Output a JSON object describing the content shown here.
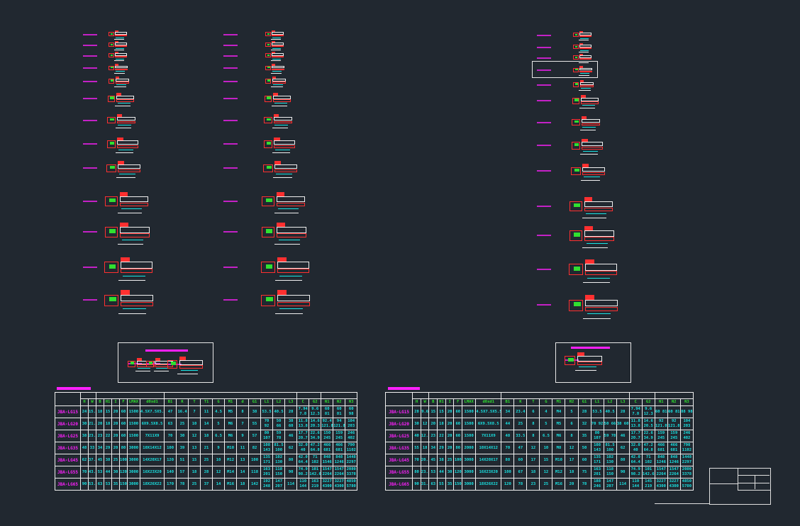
{
  "colors": {
    "background": "#212830",
    "line": "#f0f0f0",
    "value": "#19e5e5",
    "header": "#30e030",
    "label": "#ff20ff",
    "part_red": "#ff2020"
  },
  "left_table": {
    "groups": [
      2,
      6,
      11,
      2,
      3
    ],
    "headers": [
      "H",
      "W",
      "B",
      "H1",
      "I",
      "F",
      "LMAX",
      "d0xd1",
      "B1",
      "K",
      "T",
      "T1",
      "G",
      "M1",
      "d",
      "G1",
      "L1",
      "L2",
      "L3",
      "C",
      "G2",
      "N1",
      "N2",
      "N3"
    ],
    "rows": [
      [
        "JBA-LG15",
        "24",
        "15.5",
        "18",
        "15",
        "20",
        "60",
        "1500",
        "4.5X7.5X5.3",
        "47",
        "16.4",
        "7",
        "11",
        "4.5",
        "M5",
        "8",
        "38",
        "53.5",
        "40.5",
        "28",
        "7.94 7.8",
        "9.6 12.3",
        "60 81",
        "60 81",
        "60 98"
      ],
      [
        "JBA-LG20",
        "30",
        "21.5",
        "20",
        "18",
        "20",
        "60",
        "1500",
        "6X9.5X8.5",
        "63",
        "25",
        "10",
        "14",
        "5",
        "M6",
        "7",
        "55",
        "70 92",
        "50 66",
        "38 60",
        "11.8 13.8",
        "14.6 20.3",
        "92.4 121.8",
        "94 121.8",
        "104 203"
      ],
      [
        "JBA-LG25",
        "38",
        "23.5",
        "23",
        "22",
        "20",
        "60",
        "1500",
        "7X11X9",
        "70",
        "30",
        "12",
        "18",
        "6.5",
        "M6",
        "9",
        "57",
        "80 107",
        "59 78",
        "46",
        "17.7 20.7",
        "22.6 34.9",
        "150 245",
        "159 245",
        "246 402"
      ],
      [
        "JBA-LG35",
        "48",
        "33",
        "34",
        "29",
        "20",
        "80",
        "3000",
        "10X14X12",
        "100",
        "39",
        "13",
        "21",
        "9",
        "M10",
        "11",
        "82",
        "108 143",
        "81.5 100",
        "62",
        "32.0 40",
        "47.2 64.8",
        "466 681",
        "466 681",
        "790 1102"
      ],
      [
        "JBA-LG45",
        "62",
        "37.5",
        "45",
        "38",
        "25",
        "100",
        "3000",
        "14X20X17",
        "120",
        "51",
        "15",
        "25",
        "10",
        "M12",
        "13",
        "100",
        "135 171",
        "102 130",
        "80",
        "42.0 64.4",
        "71 102",
        "848 1546",
        "848 1246",
        "1448 2297"
      ],
      [
        "JBA-LG55",
        "70",
        "43.5",
        "53",
        "44",
        "30",
        "120",
        "3000",
        "16X23X20",
        "140",
        "57",
        "18",
        "28",
        "12",
        "M14",
        "14",
        "118",
        "163 201",
        "118 150",
        "90",
        "74.9 98.2",
        "101 142.6",
        "1547 2264",
        "1547 2264",
        "2080 3378"
      ],
      [
        "JBA-LG65",
        "90",
        "53.5",
        "63",
        "53",
        "35",
        "150",
        "3000",
        "18X26X22",
        "170",
        "78",
        "25",
        "37",
        "14",
        "M16",
        "18",
        "142",
        "192 248",
        "147 207",
        "114",
        "110 144",
        "163 219",
        "3227 4300",
        "3227 4300",
        "4850 5780"
      ]
    ]
  },
  "right_table": {
    "groups": [
      2,
      6,
      10,
      2,
      3
    ],
    "headers": [
      "H",
      "W",
      "B",
      "H1",
      "I",
      "F",
      "LMAX",
      "d0xd1",
      "B1",
      "K",
      "T",
      "G",
      "M1",
      "H2",
      "G1",
      "L1",
      "L2",
      "L3",
      "C",
      "G2",
      "N1",
      "N2",
      "N3"
    ],
    "rows": [
      [
        "JBA-LG15",
        "28",
        "9.6",
        "15",
        "15",
        "20",
        "60",
        "1500",
        "4.5X7.5X5.5",
        "34",
        "23.4",
        "6",
        "4",
        "M4",
        "5",
        "28",
        "53.5",
        "40.5",
        "28",
        "7.94 7.8",
        "9.6 12.3",
        "60 81",
        "60 81",
        "88 98"
      ],
      [
        "JBA-LG20",
        "30",
        "12",
        "20",
        "18",
        "20",
        "60",
        "1500",
        "6X9.5X8.5",
        "44",
        "25",
        "8",
        "5",
        "M5",
        "6",
        "32",
        "70 92",
        "50 66",
        "38 60",
        "11.8 13.8",
        "14.6 20.5",
        "92 121.8",
        "92 121.8",
        "104 203"
      ],
      [
        "JBA-LG25",
        "40",
        "12.5",
        "23",
        "22",
        "20",
        "60",
        "1500",
        "7X11X9",
        "48",
        "33.5",
        "8",
        "6.5",
        "M6",
        "8",
        "35",
        "80 107",
        "59 78",
        "46",
        "17.7 20.7",
        "22.6 34.9",
        "159 245",
        "159 245",
        "246 402"
      ],
      [
        "JBA-LG35",
        "55",
        "18",
        "34",
        "29",
        "20",
        "80",
        "2000",
        "10X14X12",
        "70",
        "47",
        "12",
        "10",
        "M8",
        "12",
        "50",
        "108 143",
        "81.5 100",
        "62",
        "32.0 40",
        "47.2 64.8",
        "466 681",
        "466 681",
        "790 1102"
      ],
      [
        "JBA-LG45",
        "70",
        "20.5",
        "45",
        "38",
        "25",
        "100",
        "3000",
        "14X20X17",
        "88",
        "60",
        "17",
        "15",
        "M10",
        "17",
        "60",
        "135 171",
        "102 130",
        "80",
        "42.0 64.4",
        "71 102",
        "848 1246",
        "848 1246",
        "1448 2297"
      ],
      [
        "JBA-LG55",
        "80",
        "23.5",
        "53",
        "44",
        "30",
        "120",
        "3000",
        "16X23X20",
        "100",
        "67",
        "18",
        "12",
        "M12",
        "18",
        "75",
        "163 201",
        "118 150",
        "90",
        "74.9 98.2",
        "101 142.6",
        "1547 2264",
        "1547 2264",
        "2080 3378"
      ],
      [
        "JBA-LG65",
        "90",
        "31.5",
        "63",
        "55",
        "35",
        "150",
        "3000",
        "18X26X22",
        "120",
        "78",
        "23",
        "25",
        "M16",
        "20",
        "78",
        "188 246",
        "147 207",
        "114",
        "110 144",
        "145 219",
        "3227 4300",
        "3227 4300",
        "4850 5780"
      ]
    ]
  }
}
